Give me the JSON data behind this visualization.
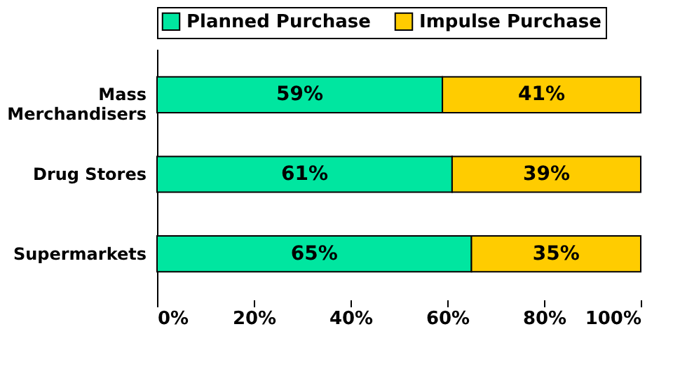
{
  "chart_data": {
    "type": "bar",
    "orientation": "horizontal",
    "stacked": true,
    "categories": [
      "Mass Merchandisers",
      "Drug Stores",
      "Supermarkets"
    ],
    "series": [
      {
        "name": "Planned Purchase",
        "color": "#00e6a0",
        "values": [
          59,
          61,
          65
        ],
        "value_labels": [
          "59%",
          "61%",
          "65%"
        ]
      },
      {
        "name": "Impulse Purchase",
        "color": "#ffcc00",
        "values": [
          41,
          39,
          35
        ],
        "value_labels": [
          "41%",
          "39%",
          "35%"
        ]
      }
    ],
    "xlim": [
      0,
      100
    ],
    "xticks": [
      {
        "value": 0,
        "label": "0%"
      },
      {
        "value": 20,
        "label": "20%"
      },
      {
        "value": 40,
        "label": "40%"
      },
      {
        "value": 60,
        "label": "60%"
      },
      {
        "value": 80,
        "label": "80%"
      },
      {
        "value": 100,
        "label": "100%"
      }
    ],
    "legend": "top",
    "grid": false
  }
}
